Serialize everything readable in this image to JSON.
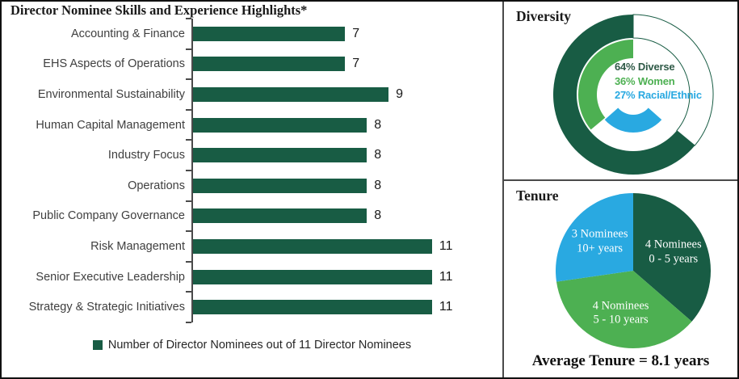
{
  "colors": {
    "dark_green": "#185C44",
    "medium_green": "#4DB052",
    "blue": "#29A9E1",
    "axis_gray": "#4a4a4a",
    "text_dark": "#1a1a1a"
  },
  "chart_data": [
    {
      "type": "bar",
      "orientation": "horizontal",
      "title": "Director Nominee Skills and Experience Highlights*",
      "categories": [
        "Accounting & Finance",
        "EHS Aspects of Operations",
        "Environmental Sustainability",
        "Human Capital Management",
        "Industry Focus",
        "Operations",
        "Public Company Governance",
        "Risk Management",
        "Senior Executive Leadership",
        "Strategy & Strategic Initiatives"
      ],
      "values": [
        7,
        7,
        9,
        8,
        8,
        8,
        8,
        11,
        11,
        11
      ],
      "xlim": [
        0,
        12
      ],
      "grid": false,
      "bar_color": "#185C44",
      "legend": [
        "Number of Director Nominees out of 11 Director Nominees"
      ],
      "legend_position": "bottom"
    },
    {
      "type": "donut",
      "title": "Diversity",
      "legend_position": "center",
      "series": [
        {
          "name": "Diverse",
          "value_pct": 64,
          "ring": "outer",
          "color": "#185C44",
          "label": "64% Diverse",
          "label_color": "#2F5A47"
        },
        {
          "name": "Women",
          "value_pct": 36,
          "ring": "middle",
          "color": "#4DB052",
          "label": "36% Women",
          "label_color": "#4DB052"
        },
        {
          "name": "Racial/Ethnic",
          "value_pct": 27,
          "ring": "inner",
          "color": "#29A9E1",
          "label": "27% Racial/Ethnic",
          "label_color": "#29A9E1"
        }
      ]
    },
    {
      "type": "pie",
      "title": "Tenure",
      "total": 11,
      "slices": [
        {
          "label": "4 Nominees",
          "sublabel": "0 - 5 years",
          "value": 4,
          "color": "#185C44"
        },
        {
          "label": "4 Nominees",
          "sublabel": "5 - 10 years",
          "value": 4,
          "color": "#4DB052"
        },
        {
          "label": "3 Nominees",
          "sublabel": "10+ years",
          "value": 3,
          "color": "#29A9E1"
        }
      ],
      "annotation": "Average Tenure = 8.1 years"
    }
  ]
}
